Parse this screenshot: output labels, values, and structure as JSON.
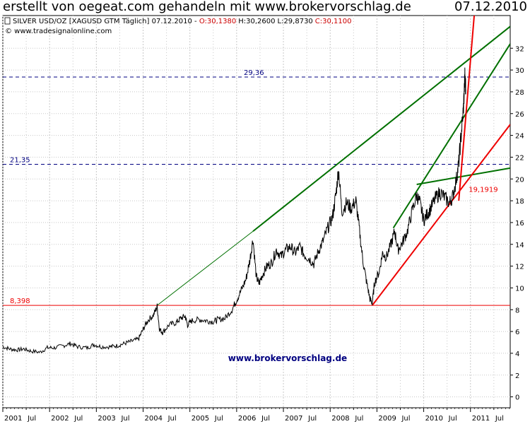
{
  "header": {
    "title": "erstellt von oegeat.com gehandeln mit www.brokervorschlag.de",
    "date": "07.12.2010"
  },
  "legend": {
    "instrument": "SILVER USD/OZ [XAGUSD GTM  Täglich] 07.12.2010 - ",
    "open": "O:30,1380",
    "high": "H:30,2600",
    "low": "L:29,8730",
    "close": "C:30,1100",
    "copyright": "© www.tradesignalonline.com"
  },
  "watermark": "www.brokervorschlag.de",
  "colors": {
    "price": "#000000",
    "resistance": "#007000",
    "support": "#ee0000",
    "dashed": "#000080",
    "grid": "#c8c8c8",
    "watermark": "#000080"
  },
  "chart_data": {
    "type": "line",
    "title": "SILVER USD/OZ",
    "ylim": [
      -1,
      35
    ],
    "xlim": [
      2001.0,
      2011.85
    ],
    "y_ticks": [
      0,
      2,
      4,
      6,
      8,
      10,
      12,
      14,
      16,
      18,
      20,
      22,
      24,
      26,
      28,
      30,
      32
    ],
    "x_tick_labels": [
      {
        "x": 2001.0,
        "label": "2001"
      },
      {
        "x": 2001.5,
        "label": "Jul"
      },
      {
        "x": 2002.0,
        "label": "2002"
      },
      {
        "x": 2002.5,
        "label": "Jul"
      },
      {
        "x": 2003.0,
        "label": "2003"
      },
      {
        "x": 2003.5,
        "label": "Jul"
      },
      {
        "x": 2004.0,
        "label": "2004"
      },
      {
        "x": 2004.5,
        "label": "Jul"
      },
      {
        "x": 2005.0,
        "label": "2005"
      },
      {
        "x": 2005.5,
        "label": "Jul"
      },
      {
        "x": 2006.0,
        "label": "2006"
      },
      {
        "x": 2006.5,
        "label": "Jul"
      },
      {
        "x": 2007.0,
        "label": "2007"
      },
      {
        "x": 2007.5,
        "label": "Jul"
      },
      {
        "x": 2008.0,
        "label": "2008"
      },
      {
        "x": 2008.5,
        "label": "Jul"
      },
      {
        "x": 2009.0,
        "label": "2009"
      },
      {
        "x": 2009.5,
        "label": "Jul"
      },
      {
        "x": 2010.0,
        "label": "2010"
      },
      {
        "x": 2010.5,
        "label": "Jul"
      },
      {
        "x": 2011.0,
        "label": "2011"
      },
      {
        "x": 2011.5,
        "label": "Jul"
      }
    ],
    "series": [
      {
        "values": [
          [
            2001.0,
            4.6
          ],
          [
            2001.15,
            4.4
          ],
          [
            2001.3,
            4.3
          ],
          [
            2001.45,
            4.4
          ],
          [
            2001.6,
            4.2
          ],
          [
            2001.8,
            4.1
          ],
          [
            2001.95,
            4.5
          ],
          [
            2002.1,
            4.5
          ],
          [
            2002.3,
            4.7
          ],
          [
            2002.45,
            4.9
          ],
          [
            2002.6,
            4.6
          ],
          [
            2002.8,
            4.5
          ],
          [
            2002.95,
            4.8
          ],
          [
            2003.1,
            4.6
          ],
          [
            2003.3,
            4.6
          ],
          [
            2003.45,
            4.7
          ],
          [
            2003.6,
            4.9
          ],
          [
            2003.75,
            5.1
          ],
          [
            2003.9,
            5.3
          ],
          [
            2004.0,
            6.2
          ],
          [
            2004.1,
            7.0
          ],
          [
            2004.22,
            7.5
          ],
          [
            2004.3,
            8.3
          ],
          [
            2004.35,
            6.2
          ],
          [
            2004.42,
            5.9
          ],
          [
            2004.55,
            6.6
          ],
          [
            2004.7,
            6.8
          ],
          [
            2004.8,
            7.2
          ],
          [
            2004.9,
            7.4
          ],
          [
            2004.95,
            6.6
          ],
          [
            2005.05,
            7.0
          ],
          [
            2005.2,
            7.1
          ],
          [
            2005.35,
            7.0
          ],
          [
            2005.5,
            6.9
          ],
          [
            2005.6,
            7.1
          ],
          [
            2005.75,
            7.2
          ],
          [
            2005.9,
            8.0
          ],
          [
            2006.0,
            8.9
          ],
          [
            2006.1,
            9.8
          ],
          [
            2006.2,
            10.8
          ],
          [
            2006.28,
            12.5
          ],
          [
            2006.35,
            14.5
          ],
          [
            2006.42,
            11.0
          ],
          [
            2006.48,
            10.4
          ],
          [
            2006.55,
            11.2
          ],
          [
            2006.65,
            12.0
          ],
          [
            2006.75,
            12.3
          ],
          [
            2006.85,
            13.5
          ],
          [
            2006.95,
            12.9
          ],
          [
            2007.05,
            13.5
          ],
          [
            2007.15,
            13.8
          ],
          [
            2007.25,
            13.2
          ],
          [
            2007.35,
            13.8
          ],
          [
            2007.45,
            13.0
          ],
          [
            2007.55,
            12.7
          ],
          [
            2007.65,
            12.2
          ],
          [
            2007.75,
            13.4
          ],
          [
            2007.85,
            14.3
          ],
          [
            2007.95,
            15.5
          ],
          [
            2008.05,
            16.5
          ],
          [
            2008.12,
            18.5
          ],
          [
            2008.18,
            20.9
          ],
          [
            2008.25,
            17.0
          ],
          [
            2008.35,
            17.8
          ],
          [
            2008.45,
            17.3
          ],
          [
            2008.55,
            18.0
          ],
          [
            2008.62,
            15.5
          ],
          [
            2008.7,
            12.5
          ],
          [
            2008.78,
            10.5
          ],
          [
            2008.85,
            9.0
          ],
          [
            2008.9,
            8.6
          ],
          [
            2008.95,
            10.5
          ],
          [
            2009.05,
            11.5
          ],
          [
            2009.12,
            13.2
          ],
          [
            2009.2,
            12.8
          ],
          [
            2009.3,
            14.0
          ],
          [
            2009.38,
            15.2
          ],
          [
            2009.45,
            13.5
          ],
          [
            2009.55,
            14.2
          ],
          [
            2009.65,
            15.2
          ],
          [
            2009.75,
            17.0
          ],
          [
            2009.85,
            18.5
          ],
          [
            2009.92,
            17.8
          ],
          [
            2010.0,
            16.2
          ],
          [
            2010.08,
            16.8
          ],
          [
            2010.15,
            17.3
          ],
          [
            2010.25,
            18.2
          ],
          [
            2010.35,
            18.8
          ],
          [
            2010.45,
            18.3
          ],
          [
            2010.55,
            17.8
          ],
          [
            2010.62,
            18.4
          ],
          [
            2010.7,
            20.0
          ],
          [
            2010.75,
            21.5
          ],
          [
            2010.8,
            24.0
          ],
          [
            2010.85,
            26.5
          ],
          [
            2010.88,
            29.3
          ],
          [
            2010.9,
            28.2
          ]
        ]
      }
    ],
    "horizontal_lines": [
      {
        "value": 29.36,
        "label": "29,36",
        "style": "dashed",
        "color": "#000080"
      },
      {
        "value": 21.35,
        "label": "21,35",
        "style": "dashed",
        "color": "#000080"
      },
      {
        "value": 8.398,
        "label": "8,398",
        "style": "solid",
        "color": "#ee0000"
      }
    ],
    "trend_lines": [
      {
        "kind": "resistance",
        "points": [
          [
            2004.3,
            8.4
          ],
          [
            2006.35,
            15.2
          ]
        ],
        "color": "#007000",
        "thin": true
      },
      {
        "kind": "resistance",
        "points": [
          [
            2006.35,
            15.2
          ],
          [
            2011.85,
            34.0
          ]
        ],
        "color": "#007000"
      },
      {
        "kind": "resistance",
        "points": [
          [
            2009.35,
            15.5
          ],
          [
            2011.85,
            32.4
          ]
        ],
        "color": "#007000"
      },
      {
        "kind": "resistance",
        "points": [
          [
            2009.85,
            19.5
          ],
          [
            2011.85,
            21.0
          ]
        ],
        "color": "#007000"
      },
      {
        "kind": "support",
        "points": [
          [
            2008.9,
            8.4
          ],
          [
            2011.85,
            25.0
          ]
        ],
        "color": "#ee0000"
      },
      {
        "kind": "support",
        "points": [
          [
            2010.75,
            18.0
          ],
          [
            2011.08,
            35.0
          ]
        ],
        "color": "#ee0000"
      }
    ],
    "annotations": [
      {
        "text": "19,1919",
        "x": 2010.75,
        "y": 19.0,
        "color": "#ee0000"
      }
    ]
  }
}
